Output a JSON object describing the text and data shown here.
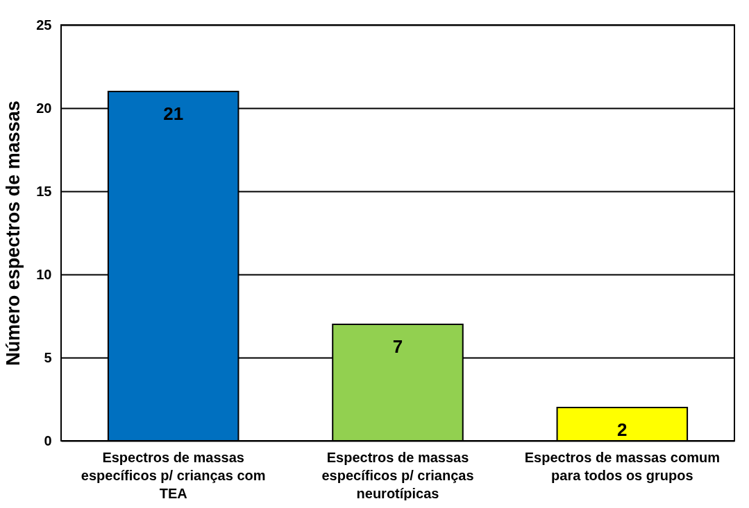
{
  "chart_data": {
    "type": "bar",
    "ylabel": "Número espectros de massas",
    "categories": [
      "Espectros de massas específicos p/ crianças com TEA",
      "Espectros de massas específicos p/ crianças neurotípicas",
      "Espectros de massas comum para todos os grupos"
    ],
    "values": [
      21,
      7,
      2
    ],
    "colors": [
      "#0070c0",
      "#92d050",
      "#ffff00"
    ],
    "ylim": [
      0,
      25
    ],
    "yticks": [
      0,
      5,
      10,
      15,
      20,
      25
    ],
    "grid": "y",
    "data_labels": true
  }
}
